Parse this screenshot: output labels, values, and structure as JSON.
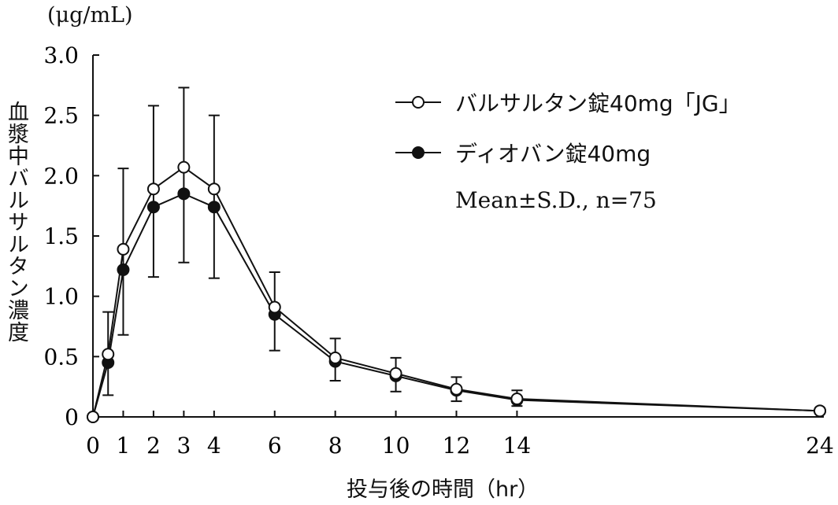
{
  "chart_data": {
    "type": "line",
    "title": "",
    "xlabel": "投与後の時間（hr）",
    "ylabel": "血漿中バルサルタン濃度",
    "yunits": "(μg/mL)",
    "xlim": [
      0,
      24
    ],
    "ylim": [
      0,
      3.0
    ],
    "xticks": [
      0,
      1,
      2,
      3,
      4,
      6,
      8,
      10,
      12,
      14,
      24
    ],
    "yticks": [
      0,
      0.5,
      1.0,
      1.5,
      2.0,
      2.5,
      3.0
    ],
    "ytick_labels": [
      "0",
      "0.5",
      "1.0",
      "1.5",
      "2.0",
      "2.5",
      "3.0"
    ],
    "x": [
      0,
      0.5,
      1,
      2,
      3,
      4,
      6,
      8,
      10,
      12,
      14,
      24
    ],
    "series": [
      {
        "name": "バルサルタン錠40mg「JG」",
        "marker": "open-circle",
        "values": [
          0,
          0.52,
          1.39,
          1.89,
          2.07,
          1.89,
          0.91,
          0.49,
          0.36,
          0.23,
          0.15,
          0.05
        ]
      },
      {
        "name": "ディオバン錠40mg",
        "marker": "filled-circle",
        "values": [
          0,
          0.45,
          1.22,
          1.74,
          1.85,
          1.74,
          0.85,
          0.46,
          0.34,
          0.22,
          0.14,
          0.05
        ]
      }
    ],
    "error_bars": [
      {
        "x": 0.5,
        "low": 0.18,
        "high": 0.87
      },
      {
        "x": 1,
        "low": 0.68,
        "high": 2.06
      },
      {
        "x": 2,
        "low": 1.16,
        "high": 2.58
      },
      {
        "x": 3,
        "low": 1.28,
        "high": 2.73
      },
      {
        "x": 4,
        "low": 1.15,
        "high": 2.5
      },
      {
        "x": 6,
        "low": 0.55,
        "high": 1.2
      },
      {
        "x": 8,
        "low": 0.3,
        "high": 0.65
      },
      {
        "x": 10,
        "low": 0.21,
        "high": 0.49
      },
      {
        "x": 12,
        "low": 0.13,
        "high": 0.33
      },
      {
        "x": 14,
        "low": 0.09,
        "high": 0.22
      }
    ],
    "legend_note": "Mean±S.D., n=75",
    "legend_position": "top-right",
    "grid": false
  }
}
